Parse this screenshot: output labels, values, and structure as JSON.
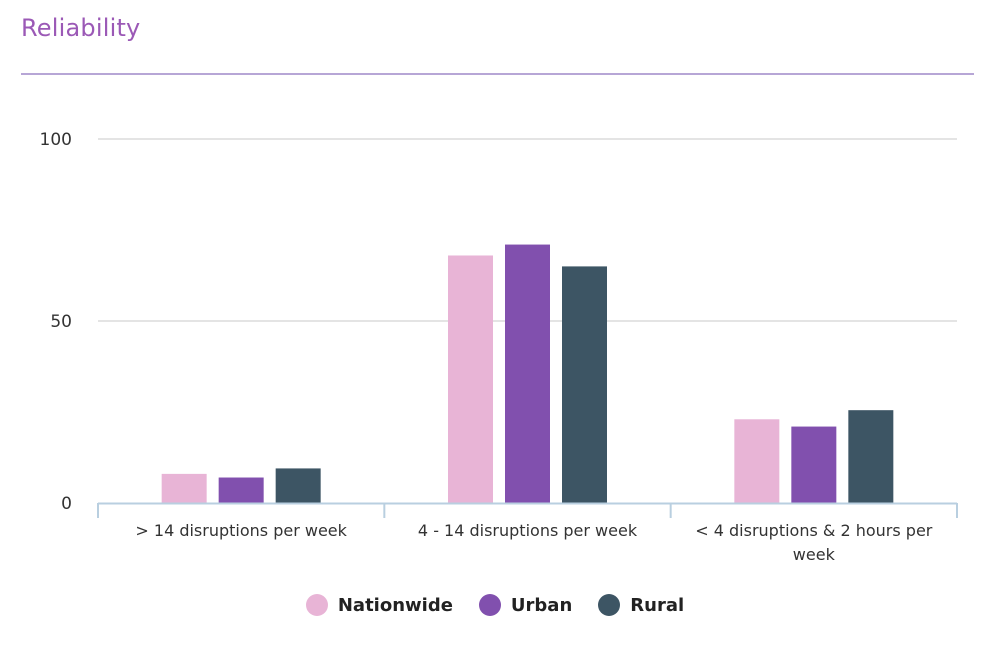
{
  "header": {
    "title": "Reliability"
  },
  "colors": {
    "title": "#9b59b6",
    "rule": "#b7a6d6",
    "grid": "#dcdcdc",
    "axis": "#b9cfe0",
    "text": "#333333"
  },
  "chart_data": {
    "type": "bar",
    "title": "Reliability",
    "xlabel": "",
    "ylabel": "",
    "ylim": [
      0,
      100
    ],
    "yticks": [
      0,
      50,
      100
    ],
    "grid": true,
    "legend_position": "bottom-center",
    "categories": [
      "> 14 disruptions per week",
      "4 - 14 disruptions per week",
      "< 4 disruptions & 2 hours per week"
    ],
    "series": [
      {
        "name": "Nationwide",
        "color": "#e8b4d6",
        "values": [
          8,
          68,
          23
        ]
      },
      {
        "name": "Urban",
        "color": "#8150ae",
        "values": [
          7,
          71,
          21
        ]
      },
      {
        "name": "Rural",
        "color": "#3d5564",
        "values": [
          9.5,
          65,
          25.5
        ]
      }
    ]
  },
  "legend": {
    "items": [
      {
        "label": "Nationwide",
        "color": "#e8b4d6"
      },
      {
        "label": "Urban",
        "color": "#8150ae"
      },
      {
        "label": "Rural",
        "color": "#3d5564"
      }
    ]
  }
}
